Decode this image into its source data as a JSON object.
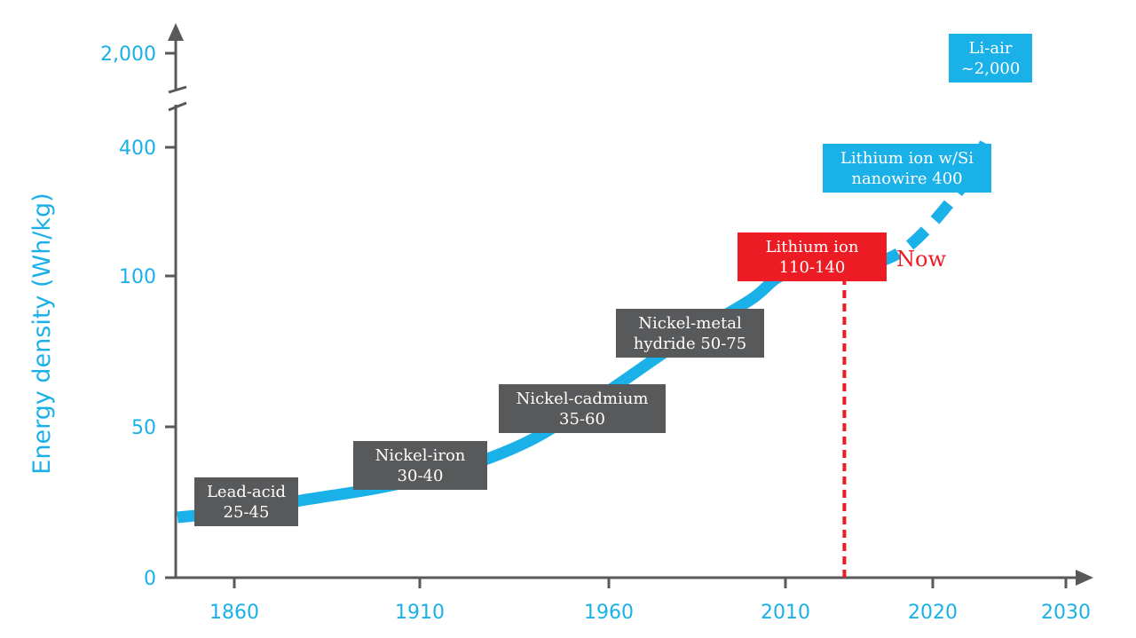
{
  "chart_data": {
    "type": "line",
    "title": "",
    "ylabel": "Energy density (Wh/kg)",
    "xlabel": "",
    "x_ticks": [
      "1860",
      "1910",
      "1960",
      "2010",
      "2020",
      "2030"
    ],
    "y_ticks": [
      "0",
      "50",
      "100",
      "400",
      "2,000"
    ],
    "y_axis_break": "between 400 and 2,000",
    "x_scale": "non-linear",
    "y_scale": "non-linear",
    "grid": false,
    "legend": "none",
    "series": [
      {
        "style": "solid",
        "color": "#1ab0e8",
        "points": [
          {
            "x": 1845,
            "y": 20
          },
          {
            "x": 1860,
            "y": 22
          },
          {
            "x": 1880,
            "y": 26
          },
          {
            "x": 1900,
            "y": 30
          },
          {
            "x": 1920,
            "y": 36
          },
          {
            "x": 1940,
            "y": 46
          },
          {
            "x": 1960,
            "y": 62
          },
          {
            "x": 1980,
            "y": 78
          },
          {
            "x": 2000,
            "y": 92
          },
          {
            "x": 2010,
            "y": 104
          },
          {
            "x": 2014,
            "y": 112
          }
        ]
      },
      {
        "style": "dashed",
        "color": "#1ab0e8",
        "points": [
          {
            "x": 2014,
            "y": 112
          },
          {
            "x": 2018,
            "y": 160
          },
          {
            "x": 2022,
            "y": 300
          },
          {
            "x": 2024,
            "y": 500
          }
        ]
      }
    ],
    "annotations": [
      {
        "id": "lead-acid",
        "lines": [
          "Lead-acid",
          "25-45"
        ],
        "color": "#58595b",
        "x": 1860,
        "y": 35
      },
      {
        "id": "nickel-iron",
        "lines": [
          "Nickel-iron",
          "30-40"
        ],
        "color": "#58595b",
        "x": 1910,
        "y": 35
      },
      {
        "id": "nickel-cadmium",
        "lines": [
          "Nickel-cadmium",
          "35-60"
        ],
        "color": "#58595b",
        "x": 1950,
        "y": 47.5
      },
      {
        "id": "nickel-metal-hydride",
        "lines": [
          "Nickel-metal",
          "hydride 50-75"
        ],
        "color": "#58595b",
        "x": 1980,
        "y": 62.5
      },
      {
        "id": "lithium-ion",
        "lines": [
          "Lithium ion",
          "110-140"
        ],
        "color": "#ed1c24",
        "x": 2012,
        "y": 125
      },
      {
        "id": "lithium-ion-si",
        "lines": [
          "Lithium ion w/Si",
          "nanowire 400"
        ],
        "color": "#1ab0e8",
        "x": 2017,
        "y": 400
      },
      {
        "id": "li-air",
        "lines": [
          "Li-air",
          "~2,000"
        ],
        "color": "#1ab0e8",
        "x": 2024,
        "y": 2000
      }
    ],
    "now_marker": {
      "label": "Now",
      "color": "#ed1c24",
      "x": 2014
    }
  },
  "colors": {
    "axis": "#58595b",
    "accent": "#1ab0e8",
    "now": "#ed1c24"
  }
}
